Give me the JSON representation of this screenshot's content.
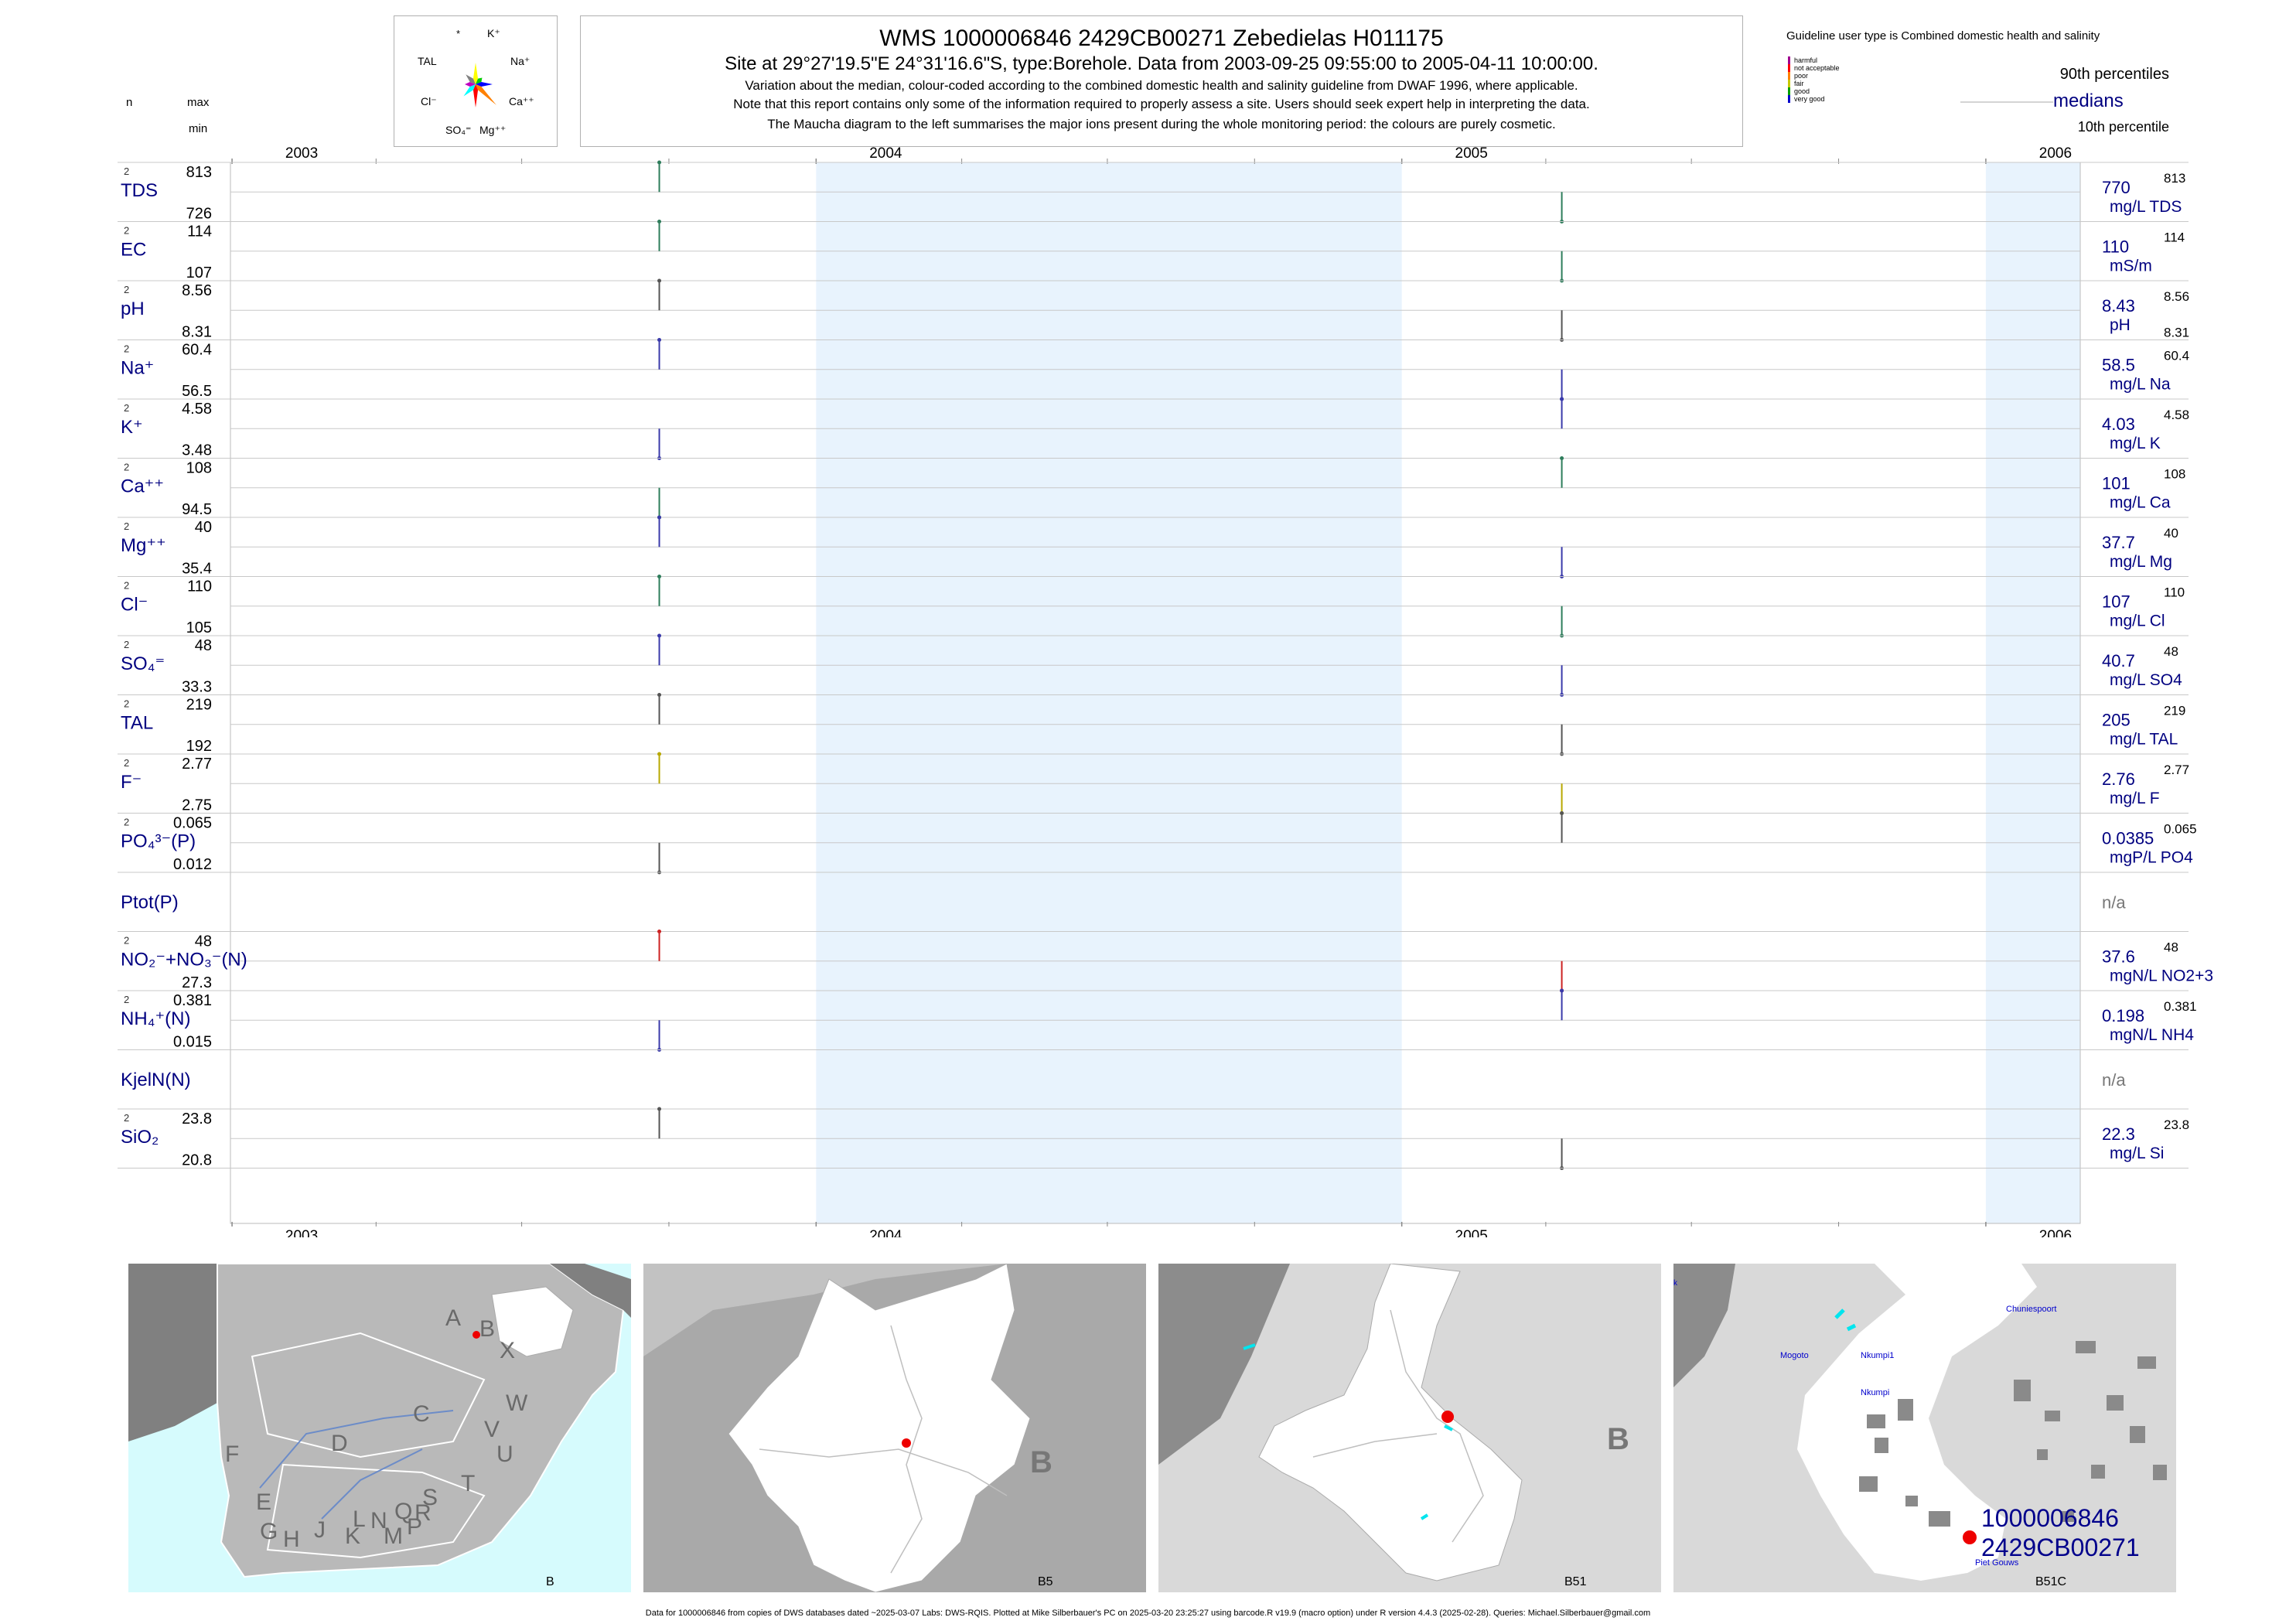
{
  "header": {
    "title": "WMS 1000006846 2429CB00271 Zebedielas H011175",
    "subtitle": "Site at 29°27'19.5\"E 24°31'16.6\"S, type:Borehole.  Data from 2003-09-25 09:55:00 to 2005-04-11 10:00:00.",
    "note1": "Variation about the median,  colour-coded according to the combined domestic health and salinity guideline from DWAF 1996, where applicable.",
    "note2": "Note that this report contains only some of the information required to properly assess a site. Users should seek expert help in interpreting the data.",
    "note3": "The Maucha diagram to the left summarises the major ions present during the whole monitoring period: the colours are purely cosmetic."
  },
  "maucha": {
    "labels": [
      "*",
      "K⁺",
      "TAL",
      "Na⁺",
      "Cl⁻",
      "Ca⁺⁺",
      "SO₄⁼",
      "Mg⁺⁺"
    ],
    "colors": [
      "#ffff00",
      "#00cc00",
      "#0000ff",
      "#ff8000",
      "#ff0000",
      "#00ffff",
      "#c000c0",
      "#808080"
    ]
  },
  "guideline": {
    "title": "Guideline user type is Combined domestic health and salinity",
    "categories": [
      {
        "label": "harmful",
        "color": "#a0008f"
      },
      {
        "label": "not acceptable",
        "color": "#ff0000"
      },
      {
        "label": "poor",
        "color": "#ff8000"
      },
      {
        "label": "fair",
        "color": "#c8c800"
      },
      {
        "label": "good",
        "color": "#00a000"
      },
      {
        "label": "very good",
        "color": "#0000cc"
      }
    ],
    "p90_label": "90th percentiles",
    "median_label": "medians",
    "p10_label": "10th percentile"
  },
  "left_header": {
    "n": "n",
    "max": "max",
    "min": "min"
  },
  "chart_data": {
    "type": "line",
    "x_axis": {
      "type": "date",
      "range": [
        "2002-12-31",
        "2006-03-01"
      ],
      "tick_labels": [
        "2003",
        "2004",
        "2005",
        "2006"
      ]
    },
    "sample_dates": [
      "2003-09-25",
      "2005-04-11"
    ],
    "grid": true,
    "series": [
      {
        "name": "TDS",
        "n": "2",
        "max": "813",
        "min": "726",
        "median": "770",
        "unit": "mg/L TDS",
        "p90": "813",
        "p10": "",
        "samples": [
          {
            "date": "2003-09-25",
            "value": 813,
            "color": "#2e7d5b"
          },
          {
            "date": "2005-04-11",
            "value": 726,
            "color": "#2e7d5b"
          }
        ]
      },
      {
        "name": "EC",
        "n": "2",
        "max": "114",
        "min": "107",
        "median": "110",
        "unit": "mS/m",
        "p90": "114",
        "p10": "",
        "samples": [
          {
            "date": "2003-09-25",
            "value": 114,
            "color": "#2e7d5b"
          },
          {
            "date": "2005-04-11",
            "value": 107,
            "color": "#2e7d5b"
          }
        ]
      },
      {
        "name": "pH",
        "n": "2",
        "max": "8.56",
        "min": "8.31",
        "median": "8.43",
        "unit": "pH",
        "p90": "8.56",
        "p10": "8.31",
        "samples": [
          {
            "date": "2003-09-25",
            "value": 8.56,
            "color": "#555555"
          },
          {
            "date": "2005-04-11",
            "value": 8.31,
            "color": "#555555"
          }
        ]
      },
      {
        "name": "Na⁺",
        "n": "2",
        "max": "60.4",
        "min": "56.5",
        "median": "58.5",
        "unit": "mg/L Na",
        "p90": "60.4",
        "p10": "",
        "samples": [
          {
            "date": "2003-09-25",
            "value": 60.4,
            "color": "#3a3aaa"
          },
          {
            "date": "2005-04-11",
            "value": 56.5,
            "color": "#3a3aaa"
          }
        ]
      },
      {
        "name": "K⁺",
        "n": "2",
        "max": "4.58",
        "min": "3.48",
        "median": "4.03",
        "unit": "mg/L K",
        "p90": "4.58",
        "p10": "",
        "samples": [
          {
            "date": "2003-09-25",
            "value": 3.48,
            "color": "#3a3aaa"
          },
          {
            "date": "2005-04-11",
            "value": 4.58,
            "color": "#3a3aaa"
          }
        ]
      },
      {
        "name": "Ca⁺⁺",
        "n": "2",
        "max": "108",
        "min": "94.5",
        "median": "101",
        "unit": "mg/L Ca",
        "p90": "108",
        "p10": "",
        "samples": [
          {
            "date": "2003-09-25",
            "value": 94.5,
            "color": "#2e7d5b"
          },
          {
            "date": "2005-04-11",
            "value": 108,
            "color": "#2e7d5b"
          }
        ]
      },
      {
        "name": "Mg⁺⁺",
        "n": "2",
        "max": "40",
        "min": "35.4",
        "median": "37.7",
        "unit": "mg/L Mg",
        "p90": "40",
        "p10": "",
        "samples": [
          {
            "date": "2003-09-25",
            "value": 40,
            "color": "#3a3aaa"
          },
          {
            "date": "2005-04-11",
            "value": 35.4,
            "color": "#3a3aaa"
          }
        ]
      },
      {
        "name": "Cl⁻",
        "n": "2",
        "max": "110",
        "min": "105",
        "median": "107",
        "unit": "mg/L Cl",
        "p90": "110",
        "p10": "",
        "samples": [
          {
            "date": "2003-09-25",
            "value": 110,
            "color": "#2e7d5b"
          },
          {
            "date": "2005-04-11",
            "value": 105,
            "color": "#2e7d5b"
          }
        ]
      },
      {
        "name": "SO₄⁼",
        "n": "2",
        "max": "48",
        "min": "33.3",
        "median": "40.7",
        "unit": "mg/L SO4",
        "p90": "48",
        "p10": "",
        "samples": [
          {
            "date": "2003-09-25",
            "value": 48,
            "color": "#3a3aaa"
          },
          {
            "date": "2005-04-11",
            "value": 33.3,
            "color": "#3a3aaa"
          }
        ]
      },
      {
        "name": "TAL",
        "n": "2",
        "max": "219",
        "min": "192",
        "median": "205",
        "unit": "mg/L TAL",
        "p90": "219",
        "p10": "",
        "samples": [
          {
            "date": "2003-09-25",
            "value": 219,
            "color": "#555555"
          },
          {
            "date": "2005-04-11",
            "value": 192,
            "color": "#555555"
          }
        ]
      },
      {
        "name": "F⁻",
        "n": "2",
        "max": "2.77",
        "min": "2.75",
        "median": "2.76",
        "unit": "mg/L F",
        "p90": "2.77",
        "p10": "",
        "samples": [
          {
            "date": "2003-09-25",
            "value": 2.77,
            "color": "#b8a800"
          },
          {
            "date": "2005-04-11",
            "value": 2.75,
            "color": "#b8a800"
          }
        ]
      },
      {
        "name": "PO₄³⁻(P)",
        "n": "2",
        "max": "0.065",
        "min": "0.012",
        "median": "0.0385",
        "unit": "mgP/L PO4",
        "p90": "0.065",
        "p10": "",
        "samples": [
          {
            "date": "2003-09-25",
            "value": 0.012,
            "color": "#555555"
          },
          {
            "date": "2005-04-11",
            "value": 0.065,
            "color": "#555555"
          }
        ]
      },
      {
        "name": "Ptot(P)",
        "n": "",
        "max": "",
        "min": "",
        "median": "n/a",
        "unit": "",
        "p90": "",
        "p10": "",
        "samples": []
      },
      {
        "name": "NO₂⁻+NO₃⁻(N)",
        "n": "2",
        "max": "48",
        "min": "27.3",
        "median": "37.6",
        "unit": "mgN/L NO2+3",
        "p90": "48",
        "p10": "",
        "samples": [
          {
            "date": "2003-09-25",
            "value": 48,
            "color": "#cc2222"
          },
          {
            "date": "2005-04-11",
            "value": 27.3,
            "color": "#cc2222"
          }
        ]
      },
      {
        "name": "NH₄⁺(N)",
        "n": "2",
        "max": "0.381",
        "min": "0.015",
        "median": "0.198",
        "unit": "mgN/L NH4",
        "p90": "0.381",
        "p10": "",
        "samples": [
          {
            "date": "2003-09-25",
            "value": 0.015,
            "color": "#3a3aaa"
          },
          {
            "date": "2005-04-11",
            "value": 0.381,
            "color": "#3a3aaa"
          }
        ]
      },
      {
        "name": "KjelN(N)",
        "n": "",
        "max": "",
        "min": "",
        "median": "n/a",
        "unit": "",
        "p90": "",
        "p10": "",
        "samples": []
      },
      {
        "name": "SiO₂",
        "n": "2",
        "max": "23.8",
        "min": "20.8",
        "median": "22.3",
        "unit": "mg/L Si",
        "p90": "23.8",
        "p10": "",
        "samples": [
          {
            "date": "2003-09-25",
            "value": 23.8,
            "color": "#555555"
          },
          {
            "date": "2005-04-11",
            "value": 20.8,
            "color": "#555555"
          }
        ]
      }
    ]
  },
  "maps": [
    {
      "label": "B",
      "region_letters": [
        "A",
        "B",
        "X",
        "W",
        "C",
        "V",
        "U",
        "D",
        "T",
        "F",
        "E",
        "S",
        "R",
        "Q",
        "L",
        "N",
        "P",
        "M",
        "K",
        "J",
        "H",
        "G"
      ]
    },
    {
      "label": "B5",
      "big_letter": "B"
    },
    {
      "label": "B51",
      "big_letter": "B"
    },
    {
      "label": "B51C",
      "site_id": "1000006846",
      "site_code": "2429CB00271",
      "places": [
        "Chuniespoort",
        "Mogoto",
        "Nkumpi1",
        "Nkumpi",
        "Piet Gouws"
      ],
      "corner_text": "k"
    }
  ],
  "footer": "Data for 1000006846 from copies of DWS databases dated ~2025-03-07 Labs: DWS-RQIS. Plotted at Mike Silberbauer's PC on 2025-03-20 23:25:27 using barcode.R v19.9 (macro option) under R version 4.4.3 (2025-02-28). Queries: Michael.Silberbauer@gmail.com"
}
